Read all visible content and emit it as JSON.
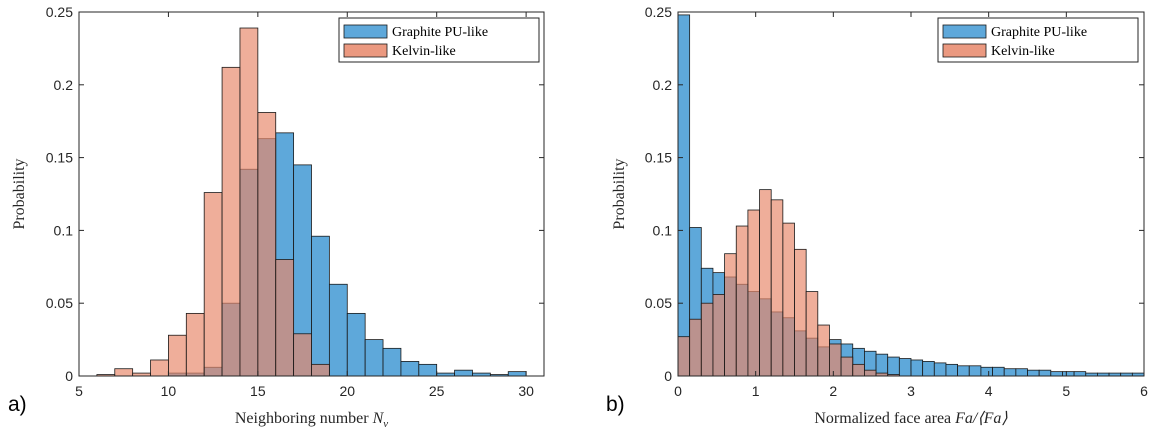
{
  "chart_data": [
    {
      "type": "bar",
      "panel_label": "a)",
      "xlabel": "Neighboring number ",
      "xlabel_var": "N",
      "xlabel_sub": "v",
      "ylabel": "Probability",
      "xlim": [
        5,
        31
      ],
      "ylim": [
        0,
        0.25
      ],
      "xticks": [
        5,
        10,
        15,
        20,
        25,
        30
      ],
      "yticks": [
        0,
        0.05,
        0.1,
        0.15,
        0.2,
        0.25
      ],
      "ytick_labels": [
        "0",
        "0.05",
        "0.1",
        "0.15",
        "0.2",
        "0.25"
      ],
      "bin_width": 1,
      "legend_position": "top-right",
      "series": [
        {
          "name": "Graphite PU-like",
          "color": "#4d9fd6",
          "bin_starts": [
            7,
            8,
            9,
            10,
            11,
            12,
            13,
            14,
            15,
            16,
            17,
            18,
            19,
            20,
            21,
            22,
            23,
            24,
            25,
            26,
            27,
            28,
            29,
            30
          ],
          "values": [
            0,
            0,
            0,
            0.002,
            0.002,
            0.006,
            0.05,
            0.142,
            0.163,
            0.167,
            0.145,
            0.096,
            0.063,
            0.043,
            0.025,
            0.019,
            0.01,
            0.008,
            0.002,
            0.004,
            0.002,
            0.001,
            0.003,
            0
          ]
        },
        {
          "name": "Kelvin-like",
          "color": "#e8876a",
          "bin_starts": [
            6,
            7,
            8,
            9,
            10,
            11,
            12,
            13,
            14,
            15,
            16,
            17,
            18
          ],
          "values": [
            0.001,
            0.005,
            0.002,
            0.011,
            0.028,
            0.043,
            0.126,
            0.212,
            0.239,
            0.181,
            0.08,
            0.029,
            0.008
          ]
        }
      ]
    },
    {
      "type": "bar",
      "panel_label": "b)",
      "xlabel": "Normalized face area ",
      "xlabel_var": "Fa/⟨Fa⟩",
      "ylabel": "Probability",
      "xlim": [
        0,
        6
      ],
      "ylim": [
        0,
        0.25
      ],
      "xticks": [
        0,
        1,
        2,
        3,
        4,
        5,
        6
      ],
      "yticks": [
        0,
        0.05,
        0.1,
        0.15,
        0.2,
        0.25
      ],
      "ytick_labels": [
        "0",
        "0.05",
        "0.1",
        "0.15",
        "0.2",
        "0.25"
      ],
      "bin_width": 0.15,
      "legend_position": "top-right",
      "series": [
        {
          "name": "Graphite PU-like",
          "color": "#4d9fd6",
          "bin_starts": [
            0,
            0.15,
            0.3,
            0.45,
            0.6,
            0.75,
            0.9,
            1.05,
            1.2,
            1.35,
            1.5,
            1.65,
            1.8,
            1.95,
            2.1,
            2.25,
            2.4,
            2.55,
            2.7,
            2.85,
            3.0,
            3.15,
            3.3,
            3.45,
            3.6,
            3.75,
            3.9,
            4.05,
            4.2,
            4.35,
            4.5,
            4.65,
            4.8,
            4.95,
            5.1,
            5.25,
            5.4,
            5.55,
            5.7,
            5.85
          ],
          "values": [
            0.248,
            0.102,
            0.074,
            0.071,
            0.068,
            0.063,
            0.058,
            0.053,
            0.044,
            0.04,
            0.031,
            0.026,
            0.02,
            0.025,
            0.022,
            0.019,
            0.017,
            0.015,
            0.013,
            0.012,
            0.011,
            0.01,
            0.009,
            0.008,
            0.007,
            0.007,
            0.006,
            0.006,
            0.005,
            0.005,
            0.004,
            0.004,
            0.003,
            0.003,
            0.003,
            0.002,
            0.002,
            0.002,
            0.002,
            0.002
          ]
        },
        {
          "name": "Kelvin-like",
          "color": "#e8876a",
          "bin_starts": [
            0,
            0.15,
            0.3,
            0.45,
            0.6,
            0.75,
            0.9,
            1.05,
            1.2,
            1.35,
            1.5,
            1.65,
            1.8,
            1.95,
            2.1,
            2.25,
            2.4,
            2.55,
            2.7
          ],
          "values": [
            0.027,
            0.039,
            0.05,
            0.056,
            0.084,
            0.103,
            0.114,
            0.128,
            0.121,
            0.105,
            0.087,
            0.058,
            0.035,
            0.022,
            0.013,
            0.008,
            0.004,
            0.002,
            0.001
          ]
        }
      ]
    }
  ]
}
